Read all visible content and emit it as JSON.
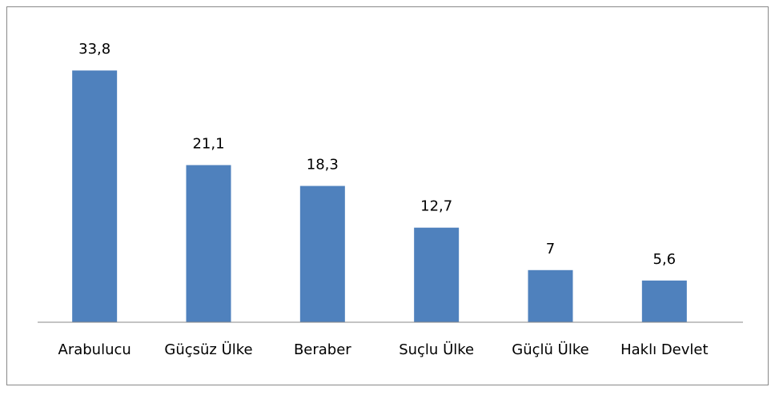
{
  "chart_data": {
    "type": "bar",
    "categories": [
      "Arabulucu",
      "Güçsüz Ülke",
      "Beraber",
      "Suçlu Ülke",
      "Güçlü Ülke",
      "Haklı Devlet"
    ],
    "values": [
      33.8,
      21.1,
      18.3,
      12.7,
      7,
      5.6
    ],
    "value_labels": [
      "33,8",
      "21,1",
      "18,3",
      "12,7",
      "7",
      "5,6"
    ],
    "color": "#4f81bd",
    "ylim": [
      0,
      35
    ]
  }
}
